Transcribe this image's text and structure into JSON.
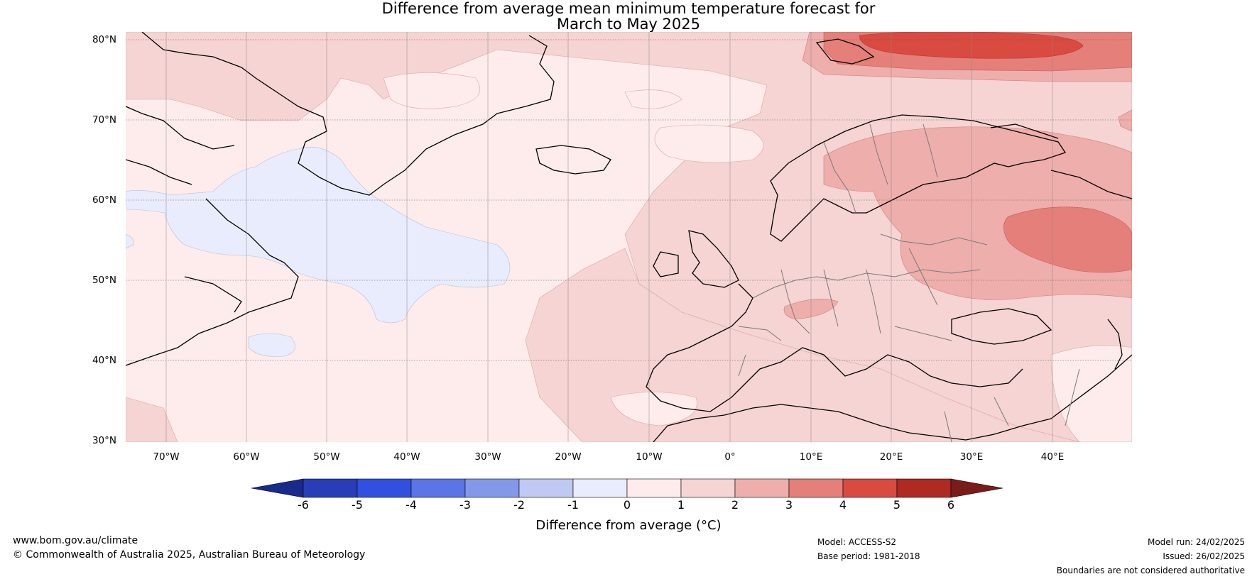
{
  "title_line1": "Difference from average mean minimum temperature forecast for",
  "title_line2": "March to May 2025",
  "lat_labels": [
    "80°N",
    "70°N",
    "60°N",
    "50°N",
    "40°N",
    "30°N"
  ],
  "lon_labels": [
    "70°W",
    "60°W",
    "50°W",
    "40°W",
    "30°W",
    "20°W",
    "10°W",
    "0°",
    "10°E",
    "20°E",
    "30°E",
    "40°E"
  ],
  "colorbar": {
    "ticks": [
      "-6",
      "-5",
      "-4",
      "-3",
      "-2",
      "-1",
      "0",
      "1",
      "2",
      "3",
      "4",
      "5",
      "6"
    ],
    "colors": [
      "#1a2a8c",
      "#2a3db8",
      "#3150e0",
      "#5b74e6",
      "#8498ea",
      "#bfc9f3",
      "#e8ecfc",
      "#fdeceb",
      "#f5d4d3",
      "#eeaeab",
      "#e57f79",
      "#d94a40",
      "#b02a24",
      "#7a1c1a"
    ],
    "label": "Difference from average (°C)"
  },
  "footer": {
    "website": "www.bom.gov.au/climate",
    "copyright": "© Commonwealth of Australia 2025, Australian Bureau of Meteorology",
    "model": "Model: ACCESS-S2",
    "base_period": "Base period: 1981-2018",
    "model_run": "Model run: 24/02/2025",
    "issued": "Issued: 26/02/2025",
    "disclaimer": "Boundaries are not considered authoritative"
  }
}
